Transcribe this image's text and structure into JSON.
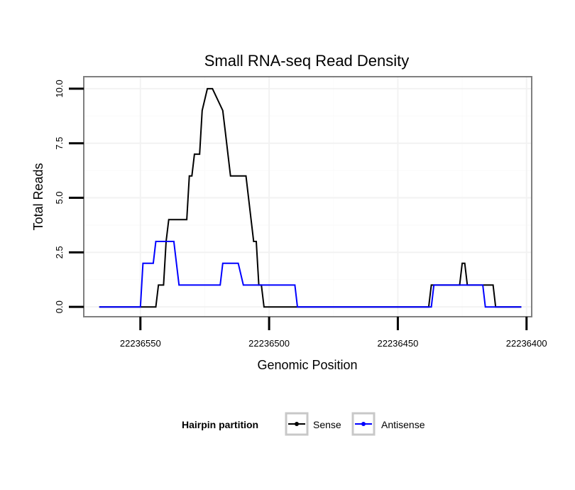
{
  "chart_data": {
    "type": "line",
    "title": "Small RNA-seq Read Density",
    "xlabel": "Genomic Position",
    "ylabel": "Total Reads",
    "xlim": [
      22236572,
      22236398
    ],
    "ylim": [
      -0.45,
      10.55
    ],
    "x_ticks": [
      22236550,
      22236500,
      22236450,
      22236400
    ],
    "x_tick_labels": [
      "22236550",
      "22236500",
      "22236450",
      "22236400"
    ],
    "y_ticks": [
      0,
      2.5,
      5,
      7.5,
      10
    ],
    "y_tick_labels": [
      "0.0",
      "2.5",
      "5.0",
      "7.5",
      "10.0"
    ],
    "grid": true,
    "legend": {
      "title": "Hairpin partition",
      "position": "bottom"
    },
    "series": [
      {
        "name": "Sense",
        "color": "#000000",
        "x": [
          22236566,
          22236544,
          22236543,
          22236541,
          22236540,
          22236539,
          22236538,
          22236532,
          22236531,
          22236530,
          22236529,
          22236527,
          22236526,
          22236524,
          22236523,
          22236522,
          22236518,
          22236517,
          22236516,
          22236515,
          22236514,
          22236509,
          22236508,
          22236507,
          22236506,
          22236505,
          22236504,
          22236503,
          22236502,
          22236438,
          22236437,
          22236426,
          22236425,
          22236424,
          22236423,
          22236413,
          22236412,
          22236402
        ],
        "y": [
          0,
          0,
          1,
          1,
          3,
          4,
          4,
          4,
          6,
          6,
          7,
          7,
          9,
          10,
          10,
          10,
          9,
          8,
          7,
          6,
          6,
          6,
          5,
          4,
          3,
          3,
          1,
          1,
          0,
          0,
          1,
          1,
          2,
          2,
          1,
          1,
          0,
          0
        ]
      },
      {
        "name": "Antisense",
        "color": "#0000ff",
        "x": [
          22236566,
          22236550,
          22236549,
          22236545,
          22236544,
          22236537,
          22236535,
          22236519,
          22236518,
          22236512,
          22236510,
          22236502,
          22236501,
          22236490,
          22236489,
          22236437,
          22236436,
          22236429,
          22236428,
          22236417,
          22236416,
          22236402
        ],
        "y": [
          0,
          0,
          2,
          2,
          3,
          3,
          1,
          1,
          2,
          2,
          1,
          1,
          1,
          1,
          0,
          0,
          1,
          1,
          1,
          1,
          0,
          0
        ]
      }
    ]
  }
}
